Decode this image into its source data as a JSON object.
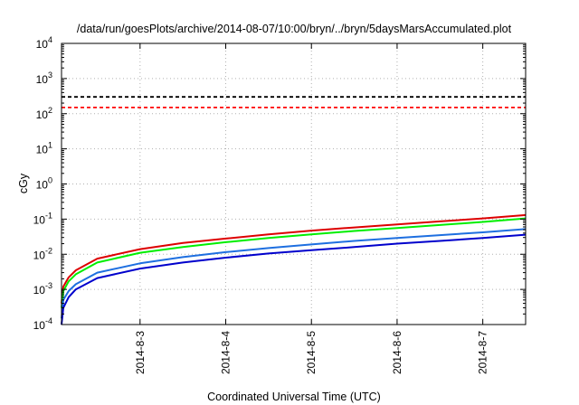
{
  "chart_data": {
    "type": "line",
    "title": "/data/run/goesPlots/archive/2014-08-07/10:00/bryn/../bryn/5daysMarsAccumulated.plot",
    "xlabel": "Coordinated Universal Time (UTC)",
    "ylabel": "cGy",
    "y_scale": "log",
    "ylim": [
      0.0001,
      10000
    ],
    "xlim": [
      "2014-08-02 02:00",
      "2014-08-07 12:00"
    ],
    "grid": true,
    "x_ticks": [
      "2014-8-3",
      "2014-8-4",
      "2014-8-5",
      "2014-8-6",
      "2014-8-7"
    ],
    "y_ticks": [
      {
        "value": 0.0001,
        "base": "10",
        "exp": "-4"
      },
      {
        "value": 0.001,
        "base": "10",
        "exp": "-3"
      },
      {
        "value": 0.01,
        "base": "10",
        "exp": "-2"
      },
      {
        "value": 0.1,
        "base": "10",
        "exp": "-1"
      },
      {
        "value": 1,
        "base": "10",
        "exp": "0"
      },
      {
        "value": 10,
        "base": "10",
        "exp": "1"
      },
      {
        "value": 100,
        "base": "10",
        "exp": "2"
      },
      {
        "value": 1000,
        "base": "10",
        "exp": "3"
      },
      {
        "value": 10000,
        "base": "10",
        "exp": "4"
      }
    ],
    "reference_lines": [
      {
        "value": 300,
        "color": "#000000",
        "style": "dashed"
      },
      {
        "value": 150,
        "color": "#ff0000",
        "style": "dashed"
      }
    ],
    "series": [
      {
        "color": "#dd0000",
        "x": [
          "2014-08-02 02:00",
          "2014-08-02 02:30",
          "2014-08-02 04:00",
          "2014-08-02 06:00",
          "2014-08-02 12:00",
          "2014-08-03 00:00",
          "2014-08-03 12:00",
          "2014-08-04 00:00",
          "2014-08-04 12:00",
          "2014-08-05 00:00",
          "2014-08-05 12:00",
          "2014-08-06 00:00",
          "2014-08-06 12:00",
          "2014-08-07 00:00",
          "2014-08-07 12:00"
        ],
        "y": [
          0.0004,
          0.0012,
          0.0022,
          0.0035,
          0.0075,
          0.014,
          0.021,
          0.028,
          0.037,
          0.047,
          0.058,
          0.071,
          0.086,
          0.105,
          0.13
        ]
      },
      {
        "color": "#00ee00",
        "x": [
          "2014-08-02 02:00",
          "2014-08-02 02:30",
          "2014-08-02 04:00",
          "2014-08-02 06:00",
          "2014-08-02 12:00",
          "2014-08-03 00:00",
          "2014-08-03 12:00",
          "2014-08-04 00:00",
          "2014-08-04 12:00",
          "2014-08-05 00:00",
          "2014-08-05 12:00",
          "2014-08-06 00:00",
          "2014-08-06 12:00",
          "2014-08-07 00:00",
          "2014-08-07 12:00"
        ],
        "y": [
          0.0003,
          0.0009,
          0.0017,
          0.0027,
          0.0058,
          0.011,
          0.016,
          0.022,
          0.029,
          0.037,
          0.046,
          0.056,
          0.068,
          0.083,
          0.105
        ]
      },
      {
        "color": "#1e6fe0",
        "x": [
          "2014-08-02 02:00",
          "2014-08-02 02:30",
          "2014-08-02 04:00",
          "2014-08-02 06:00",
          "2014-08-02 12:00",
          "2014-08-03 00:00",
          "2014-08-03 12:00",
          "2014-08-04 00:00",
          "2014-08-04 12:00",
          "2014-08-05 00:00",
          "2014-08-05 12:00",
          "2014-08-06 00:00",
          "2014-08-06 12:00",
          "2014-08-07 00:00",
          "2014-08-07 12:00"
        ],
        "y": [
          0.00015,
          0.0005,
          0.0009,
          0.0014,
          0.003,
          0.0055,
          0.0083,
          0.0115,
          0.015,
          0.019,
          0.024,
          0.029,
          0.035,
          0.042,
          0.052
        ]
      },
      {
        "color": "#0000cc",
        "x": [
          "2014-08-02 02:00",
          "2014-08-02 02:30",
          "2014-08-02 04:00",
          "2014-08-02 06:00",
          "2014-08-02 12:00",
          "2014-08-03 00:00",
          "2014-08-03 12:00",
          "2014-08-04 00:00",
          "2014-08-04 12:00",
          "2014-08-05 00:00",
          "2014-08-05 12:00",
          "2014-08-06 00:00",
          "2014-08-06 12:00",
          "2014-08-07 00:00",
          "2014-08-07 12:00"
        ],
        "y": [
          0.0001,
          0.0003,
          0.0006,
          0.001,
          0.0021,
          0.0039,
          0.0058,
          0.008,
          0.0105,
          0.013,
          0.016,
          0.02,
          0.024,
          0.029,
          0.036
        ]
      }
    ]
  }
}
